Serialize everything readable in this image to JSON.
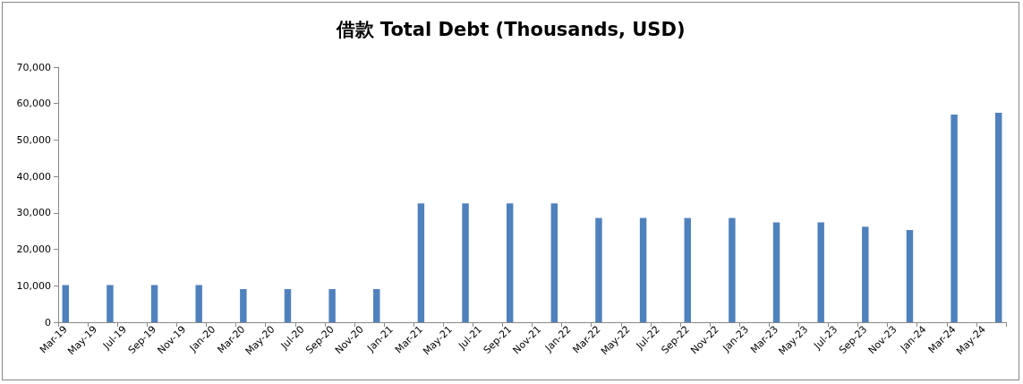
{
  "chart_data": {
    "type": "bar",
    "title": "借款 Total Debt (Thousands, USD)",
    "categories": [
      "Mar-19",
      null,
      "May-19",
      null,
      "Jul-19",
      null,
      "Sep-19",
      null,
      "Nov-19",
      null,
      "Jan-20",
      null,
      "Mar-20",
      null,
      "May-20",
      null,
      "Jul-20",
      null,
      "Sep-20",
      null,
      "Nov-20",
      null,
      "Jan-21",
      null,
      "Mar-21",
      null,
      "May-21",
      null,
      "Jul-21",
      null,
      "Sep-21",
      null,
      "Nov-21",
      null,
      "Jan-22",
      null,
      "Mar-22",
      null,
      "May-22",
      null,
      "Jul-22",
      null,
      "Sep-22",
      null,
      "Nov-22",
      null,
      "Jan-23",
      null,
      "Mar-23",
      null,
      "May-23",
      null,
      "Jul-23",
      null,
      "Sep-23",
      null,
      "Nov-23",
      null,
      "Jan-24",
      null,
      "Mar-24",
      null,
      "May-24",
      null
    ],
    "values": [
      10200,
      null,
      null,
      10200,
      null,
      null,
      10200,
      null,
      null,
      10200,
      null,
      null,
      9100,
      null,
      null,
      9100,
      null,
      null,
      9100,
      null,
      null,
      9100,
      null,
      null,
      32600,
      null,
      null,
      32600,
      null,
      null,
      32600,
      null,
      null,
      32600,
      null,
      null,
      28600,
      null,
      null,
      28600,
      null,
      null,
      28600,
      null,
      null,
      28600,
      null,
      null,
      27400,
      null,
      null,
      27400,
      null,
      null,
      26200,
      null,
      null,
      25300,
      null,
      null,
      57000,
      null,
      null,
      57500
    ],
    "color": "#4f81bd",
    "ylim": [
      0,
      70000
    ],
    "yticks": [
      0,
      {
        "value": 10000,
        "label": "10,000"
      },
      {
        "value": 20000,
        "label": "20,000"
      },
      {
        "value": 30000,
        "label": "30,000"
      },
      {
        "value": 40000,
        "label": "40,000"
      },
      {
        "value": 50000,
        "label": "50,000"
      },
      {
        "value": 60000,
        "label": "60,000"
      },
      {
        "value": 70000,
        "label": "70,000"
      }
    ],
    "grid": false
  }
}
